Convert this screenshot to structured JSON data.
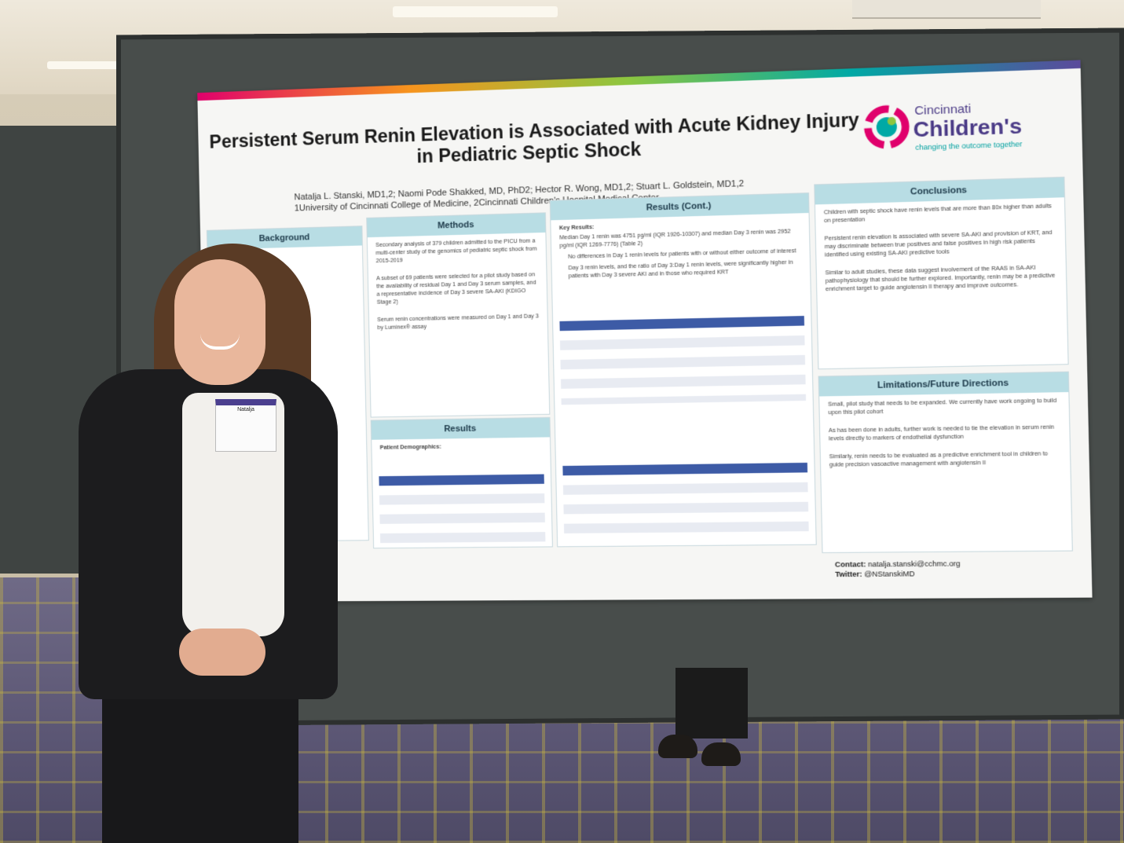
{
  "poster": {
    "title": "Persistent Serum Renin Elevation is Associated with Acute Kidney Injury in Pediatric Septic Shock",
    "authors": "Natalja L. Stanski, MD1,2; Naomi Pode Shakked, MD, PhD2; Hector R. Wong, MD1,2; Stuart L. Goldstein, MD1,2",
    "affiliations": "1University of Cincinnati College of Medicine, 2Cincinnati Children's Hospital Medical Center",
    "logo": {
      "line1": "Cincinnati",
      "line2": "Children's",
      "tagline": "changing the outcome together"
    },
    "sections": {
      "background": "Background",
      "methods": "Methods",
      "results": "Results",
      "results_cont": "Results (Cont.)",
      "conclusions": "Conclusions",
      "limitations": "Limitations/Future Directions"
    },
    "key_results_label": "Key Results:",
    "key_results": [
      "Median Day 1 renin was 4751 pg/ml (IQR 1926-10307) and median Day 3 renin was 2952 pg/ml (IQR 1269-7776) (Table 2)",
      "No differences in Day 1 renin levels for patients with or without either outcome of interest",
      "Day 3 renin levels, and the ratio of Day 3:Day 1 renin levels, were significantly higher in patients with Day 3 severe AKI and in those who required KRT"
    ],
    "conclusions": [
      "Children with septic shock have renin levels that are more than 80x higher than adults on presentation",
      "Persistent renin elevation is associated with severe SA-AKI and provision of KRT, and may discriminate between true positives and false positives in high risk patients identified using existing SA-AKI predictive tools",
      "Similar to adult studies, these data suggest involvement of the RAAS in SA-AKI pathophysiology that should be further explored. Importantly, renin may be a predictive enrichment target to guide angiotensin II therapy and improve outcomes."
    ],
    "limitations": [
      "Small, pilot study that needs to be expanded. We currently have work ongoing to build upon this pilot cohort",
      "As has been done in adults, further work is needed to tie the elevation in serum renin levels directly to markers of endothelial dysfunction",
      "Similarly, renin needs to be evaluated as a predictive enrichment tool in children to guide precision vasoactive management with angiotensin II"
    ],
    "methods": [
      "Secondary analysis of 379 children admitted to the PICU from a multi-center study of the genomics of pediatric septic shock from 2015-2019",
      "A subset of 69 patients were selected for a pilot study based on the availability of residual Day 1 and Day 3 serum samples, and a representative incidence of Day 3 severe SA-AKI (KDIGO Stage 2)",
      "Serum renin concentrations were measured on Day 1 and Day 3 by Luminex® assay"
    ],
    "patient_demographics_label": "Patient Demographics:",
    "contact_label": "Contact:",
    "contact_email": "natalja.stanski@cchmc.org",
    "twitter_label": "Twitter:",
    "twitter_handle": "@NStanskiMD"
  },
  "badge": {
    "name": "Natalja"
  },
  "colors": {
    "header_band": "#b8dde4",
    "table_header": "#3d5ba6",
    "logo_purple": "#4a3a86"
  }
}
